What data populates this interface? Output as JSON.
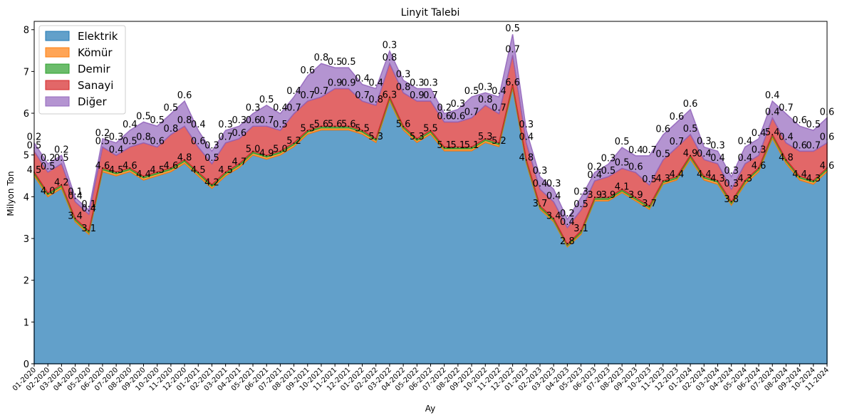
{
  "chart_data": {
    "type": "area",
    "stacked": true,
    "title": "Linyit Talebi",
    "xlabel": "Ay",
    "ylabel": "Milyon Ton",
    "ylim": [
      0,
      8.2
    ],
    "yticks": [
      "0",
      "1",
      "2",
      "3",
      "4",
      "5",
      "6",
      "7",
      "8"
    ],
    "legend_position": "top-left",
    "grid": false,
    "categories": [
      "01-2020",
      "02-2020",
      "03-2020",
      "04-2020",
      "05-2020",
      "06-2020",
      "07-2020",
      "08-2020",
      "09-2020",
      "10-2020",
      "11-2020",
      "12-2020",
      "01-2021",
      "02-2021",
      "03-2021",
      "04-2021",
      "05-2021",
      "06-2021",
      "07-2021",
      "08-2021",
      "09-2021",
      "10-2021",
      "11-2021",
      "12-2021",
      "01-2022",
      "02-2022",
      "03-2022",
      "04-2022",
      "05-2022",
      "06-2022",
      "07-2022",
      "08-2022",
      "09-2022",
      "10-2022",
      "11-2022",
      "12-2022",
      "01-2023",
      "02-2023",
      "03-2023",
      "04-2023",
      "05-2023",
      "06-2023",
      "07-2023",
      "08-2023",
      "09-2023",
      "10-2023",
      "11-2023",
      "12-2023",
      "01-2024",
      "02-2024",
      "03-2024",
      "04-2024",
      "05-2024",
      "06-2024",
      "07-2024",
      "08-2024",
      "09-2024",
      "10-2024",
      "11-2024"
    ],
    "series": [
      {
        "name": "Elektrik",
        "color": "#1f77b4",
        "values": [
          4.5,
          4.0,
          4.2,
          3.4,
          3.1,
          4.6,
          4.5,
          4.6,
          4.4,
          4.5,
          4.6,
          4.8,
          4.5,
          4.2,
          4.5,
          4.7,
          5.0,
          4.9,
          5.0,
          5.2,
          5.5,
          5.6,
          5.6,
          5.6,
          5.5,
          5.3,
          6.3,
          5.6,
          5.3,
          5.5,
          5.1,
          5.1,
          5.1,
          5.3,
          5.2,
          6.6,
          4.8,
          3.7,
          3.4,
          2.8,
          3.1,
          3.9,
          3.9,
          4.1,
          3.9,
          3.7,
          4.3,
          4.4,
          4.9,
          4.4,
          4.3,
          3.8,
          4.3,
          4.6,
          5.4,
          4.8,
          4.4,
          4.3,
          4.6
        ]
      },
      {
        "name": "Kömür",
        "color": "#ff7f0e",
        "values": [
          0.05,
          0.05,
          0.05,
          0.04,
          0.04,
          0.05,
          0.05,
          0.05,
          0.05,
          0.05,
          0.05,
          0.05,
          0.05,
          0.05,
          0.05,
          0.05,
          0.05,
          0.05,
          0.05,
          0.05,
          0.05,
          0.05,
          0.05,
          0.05,
          0.05,
          0.05,
          0.05,
          0.05,
          0.05,
          0.05,
          0.05,
          0.05,
          0.05,
          0.05,
          0.05,
          0.05,
          0.05,
          0.04,
          0.04,
          0.03,
          0.04,
          0.04,
          0.04,
          0.04,
          0.04,
          0.04,
          0.04,
          0.04,
          0.05,
          0.05,
          0.05,
          0.04,
          0.05,
          0.05,
          0.05,
          0.05,
          0.05,
          0.05,
          0.05
        ]
      },
      {
        "name": "Demir",
        "color": "#2ca02c",
        "values": [
          0.04,
          0.04,
          0.04,
          0.04,
          0.04,
          0.04,
          0.04,
          0.04,
          0.04,
          0.04,
          0.04,
          0.04,
          0.04,
          0.04,
          0.04,
          0.04,
          0.04,
          0.04,
          0.04,
          0.04,
          0.04,
          0.04,
          0.04,
          0.04,
          0.04,
          0.04,
          0.04,
          0.04,
          0.04,
          0.04,
          0.04,
          0.04,
          0.04,
          0.04,
          0.04,
          0.04,
          0.04,
          0.04,
          0.04,
          0.03,
          0.04,
          0.04,
          0.04,
          0.04,
          0.04,
          0.04,
          0.04,
          0.04,
          0.04,
          0.04,
          0.04,
          0.04,
          0.04,
          0.04,
          0.04,
          0.04,
          0.04,
          0.04,
          0.04
        ]
      },
      {
        "name": "Sanayi",
        "color": "#d62728",
        "values": [
          0.5,
          0.5,
          0.5,
          0.4,
          0.4,
          0.5,
          0.4,
          0.5,
          0.8,
          0.6,
          0.8,
          0.8,
          0.6,
          0.5,
          0.7,
          0.6,
          0.6,
          0.7,
          0.5,
          0.7,
          0.7,
          0.7,
          0.9,
          0.9,
          0.7,
          0.8,
          0.8,
          0.8,
          0.9,
          0.7,
          0.6,
          0.6,
          0.7,
          0.8,
          0.7,
          0.7,
          0.4,
          0.4,
          0.4,
          0.4,
          0.5,
          0.4,
          0.5,
          0.5,
          0.6,
          0.5,
          0.5,
          0.7,
          0.5,
          0.4,
          0.4,
          0.3,
          0.4,
          0.3,
          0.4,
          0.4,
          0.6,
          0.7,
          0.6
        ]
      },
      {
        "name": "Diğer",
        "color": "#9467bd",
        "values": [
          0.2,
          0.2,
          0.2,
          0.1,
          0.1,
          0.2,
          0.3,
          0.4,
          0.5,
          0.5,
          0.5,
          0.6,
          0.4,
          0.3,
          0.3,
          0.3,
          0.3,
          0.5,
          0.4,
          0.4,
          0.6,
          0.8,
          0.5,
          0.5,
          0.4,
          0.4,
          0.3,
          0.3,
          0.3,
          0.3,
          0.2,
          0.3,
          0.5,
          0.3,
          0.4,
          0.5,
          0.3,
          0.3,
          0.3,
          0.2,
          0.3,
          0.2,
          0.3,
          0.5,
          0.4,
          0.7,
          0.6,
          0.6,
          0.6,
          0.3,
          0.3,
          0.3,
          0.4,
          0.4,
          0.4,
          0.7,
          0.6,
          0.5,
          0.6
        ]
      }
    ],
    "labeled_series": [
      "Elektrik",
      "Sanayi",
      "Diğer"
    ]
  }
}
